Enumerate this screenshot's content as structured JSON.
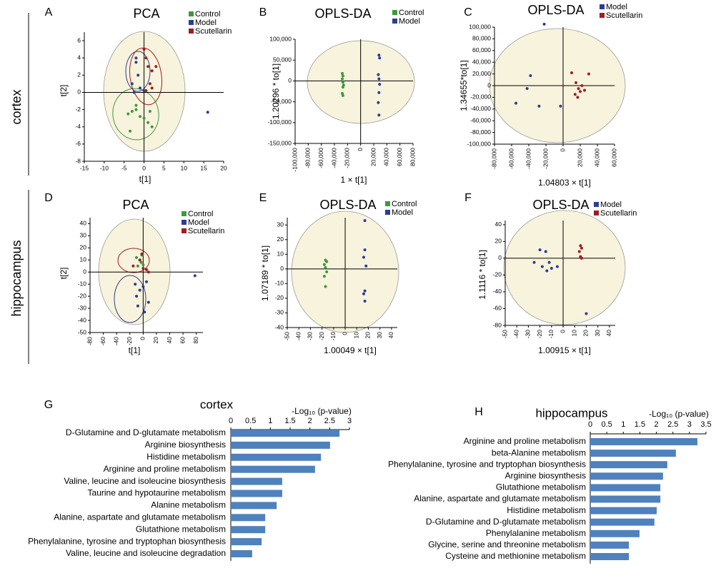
{
  "row_labels": [
    "cortex",
    "hippocampus"
  ],
  "chart_data": [
    {
      "type": "scatter",
      "panel": "A",
      "title": "PCA",
      "x_label": "t[1]",
      "y_label": "t[2]",
      "xlim": [
        -15,
        20
      ],
      "xticks": [
        -15,
        -10,
        -5,
        0,
        5,
        10,
        15,
        20
      ],
      "ylim": [
        -8,
        7
      ],
      "yticks": [
        -8,
        -6,
        -4,
        -2,
        0,
        2,
        4,
        6
      ],
      "series": [
        {
          "name": "Control",
          "color": "#3c9a3c",
          "x": [
            -4,
            -3,
            -2,
            -1,
            0,
            1,
            2,
            -3.5,
            1.5,
            -2
          ],
          "y": [
            -2.5,
            -2.2,
            -2,
            -2.8,
            -3,
            -3.5,
            -4,
            -4.5,
            -2.2,
            -1.5
          ]
        },
        {
          "name": "Model",
          "color": "#2b3d94",
          "x": [
            -2,
            -2,
            -1.5,
            -3,
            -1,
            -2.5,
            0,
            16
          ],
          "y": [
            4,
            3.5,
            2,
            1,
            0.5,
            0,
            0.2,
            -2.3
          ]
        },
        {
          "name": "Scutellarin",
          "color": "#a01c20",
          "x": [
            0,
            0.5,
            1,
            2,
            3,
            1.5,
            0.5,
            2
          ],
          "y": [
            5,
            4,
            3,
            2.5,
            3,
            1,
            0.2,
            0.5
          ]
        }
      ]
    },
    {
      "type": "scatter",
      "panel": "B",
      "title": "OPLS-DA",
      "x_label": "1 × t[1]",
      "y_label": "1.20296 * to[1]",
      "xlim": [
        -100000,
        80000
      ],
      "xticks": [
        {
          "value": -100000,
          "label": "-100,000"
        },
        {
          "value": -80000,
          "label": "-80,000"
        },
        {
          "value": -60000,
          "label": "-60,000"
        },
        {
          "value": -40000,
          "label": "-40,000"
        },
        {
          "value": -20000,
          "label": "-20,000"
        },
        0,
        {
          "value": 20000,
          "label": "20,000"
        },
        {
          "value": 40000,
          "label": "40,000"
        },
        {
          "value": 60000,
          "label": "60,000"
        },
        {
          "value": 80000,
          "label": "80,000"
        }
      ],
      "ylim": [
        -150000,
        100000
      ],
      "yticks": [
        {
          "value": -150000,
          "label": "-150,000"
        },
        {
          "value": -100000,
          "label": "-100,000"
        },
        {
          "value": -50000,
          "label": "-50,000"
        },
        0,
        {
          "value": 50000,
          "label": "50,000"
        },
        {
          "value": 100000,
          "label": "100,000"
        }
      ],
      "series": [
        {
          "name": "Control",
          "color": "#3c9a3c",
          "x": [
            -28000,
            -27000,
            -28000,
            -27000,
            -26000,
            -27000,
            -28000,
            -27000
          ],
          "y": [
            18000,
            12000,
            5000,
            -3000,
            -10000,
            -15000,
            -30000,
            -35000
          ]
        },
        {
          "name": "Model",
          "color": "#2b3d94",
          "x": [
            28000,
            29000,
            27000,
            28000,
            29000,
            28000,
            27000,
            28000
          ],
          "y": [
            62000,
            55000,
            15000,
            5000,
            -8000,
            -28000,
            -52000,
            -82000
          ]
        }
      ]
    },
    {
      "type": "scatter",
      "panel": "C",
      "title": "OPLS-DA",
      "x_label": "1.04803 × t[1]",
      "y_label": "1.34655*to[1]",
      "xlim": [
        -80000,
        60000
      ],
      "xticks": [
        {
          "value": -80000,
          "label": "-80,000"
        },
        {
          "value": -60000,
          "label": "-60,000"
        },
        {
          "value": -40000,
          "label": "-40,000"
        },
        {
          "value": -20000,
          "label": "-20,000"
        },
        0,
        {
          "value": 20000,
          "label": "20,000"
        },
        {
          "value": 40000,
          "label": "40,000"
        },
        {
          "value": 60000,
          "label": "60,000"
        }
      ],
      "ylim": [
        -100000,
        100000
      ],
      "yticks": [
        {
          "value": -100000,
          "label": "-100,000"
        },
        {
          "value": -80000,
          "label": "-80,000"
        },
        {
          "value": -60000,
          "label": "-60,000"
        },
        {
          "value": -40000,
          "label": "-40,000"
        },
        {
          "value": -20000,
          "label": "-20,000"
        },
        0,
        {
          "value": 20000,
          "label": "20,000"
        },
        {
          "value": 40000,
          "label": "40,000"
        },
        {
          "value": 60000,
          "label": "60,000"
        },
        {
          "value": 80000,
          "label": "80,000"
        },
        {
          "value": 100000,
          "label": "100,000"
        }
      ],
      "series": [
        {
          "name": "Model",
          "color": "#2b3d94",
          "x": [
            -22000,
            -55000,
            -42000,
            -38000,
            -28000,
            -3000
          ],
          "y": [
            105000,
            -30000,
            -5000,
            17000,
            -35000,
            -35000
          ]
        },
        {
          "name": "Scutellarin",
          "color": "#a01c20",
          "x": [
            10000,
            30000,
            15000,
            18000,
            20000,
            14000,
            22000,
            25000,
            17000
          ],
          "y": [
            22000,
            20000,
            5000,
            -5000,
            -10000,
            -15000,
            0,
            -8000,
            -20000
          ]
        }
      ]
    },
    {
      "type": "scatter",
      "panel": "D",
      "title": "PCA",
      "x_label": "t[1]",
      "y_label": "t[2]",
      "xlim": [
        -80,
        90
      ],
      "xticks": [
        -80,
        -60,
        -40,
        -20,
        0,
        20,
        40,
        60,
        80
      ],
      "ylim": [
        -50,
        45
      ],
      "yticks": [
        -50,
        -40,
        -30,
        -20,
        -10,
        0,
        10,
        20,
        30,
        40
      ],
      "series": [
        {
          "name": "Control",
          "color": "#3c9a3c",
          "x": [
            -10,
            -5,
            -3,
            0,
            -8,
            -2
          ],
          "y": [
            12,
            10,
            8,
            6,
            5,
            14
          ]
        },
        {
          "name": "Model",
          "color": "#2b3d94",
          "x": [
            -12,
            -5,
            0,
            5,
            -10,
            8,
            -8,
            2,
            78
          ],
          "y": [
            -10,
            -15,
            -12,
            -8,
            -20,
            -25,
            -28,
            -33,
            -3
          ]
        },
        {
          "name": "Scutellarin",
          "color": "#a01c20",
          "x": [
            -15,
            -5,
            0,
            5,
            8,
            -2
          ],
          "y": [
            5,
            10,
            3,
            2,
            0,
            15
          ]
        }
      ]
    },
    {
      "type": "scatter",
      "panel": "E",
      "title": "OPLS-DA",
      "x_label": "1.00049 × t[1]",
      "y_label": "1.07189 * to[1]",
      "xlim": [
        -50,
        45
      ],
      "xticks": [
        -50,
        -40,
        -30,
        -20,
        -10,
        0,
        10,
        20,
        30,
        40
      ],
      "ylim": [
        -40,
        35
      ],
      "yticks": [
        -40,
        -30,
        -20,
        -10,
        0,
        10,
        20,
        30
      ],
      "series": [
        {
          "name": "Control",
          "color": "#3c9a3c",
          "x": [
            -17,
            -16,
            -18,
            -17,
            -16,
            -18,
            -17
          ],
          "y": [
            6,
            5,
            3,
            1,
            -2,
            -5,
            -12
          ]
        },
        {
          "name": "Model",
          "color": "#2b3d94",
          "x": [
            17,
            17,
            16,
            18,
            17,
            16,
            17
          ],
          "y": [
            33,
            13,
            8,
            2,
            -15,
            -17,
            -22
          ]
        }
      ]
    },
    {
      "type": "scatter",
      "panel": "F",
      "title": "OPLS-DA",
      "x_label": "1.00915 × t[1]",
      "y_label": "1.1116 * to[1]",
      "xlim": [
        -50,
        45
      ],
      "xticks": [
        -50,
        -40,
        -30,
        -20,
        -10,
        0,
        10,
        20,
        30,
        40
      ],
      "ylim": [
        -80,
        45
      ],
      "yticks": [
        -80,
        -60,
        -40,
        -20,
        0,
        20,
        40
      ],
      "series": [
        {
          "name": "Model",
          "color": "#2b3d94",
          "x": [
            -20,
            -15,
            -12,
            -18,
            -10,
            -25,
            -14,
            -5,
            20
          ],
          "y": [
            10,
            8,
            -5,
            -10,
            -12,
            -5,
            -15,
            -10,
            -66
          ]
        },
        {
          "name": "Scutellarin",
          "color": "#a01c20",
          "x": [
            15,
            16,
            14,
            15,
            16
          ],
          "y": [
            15,
            12,
            8,
            2,
            0
          ]
        }
      ]
    },
    {
      "type": "bar",
      "orientation": "horizontal",
      "panel": "G",
      "title": "cortex",
      "x_label": "-Log₁₀ (p-value)",
      "color": "#4f81bd",
      "xlim": [
        0,
        3
      ],
      "xticks": [
        0,
        0.5,
        1,
        1.5,
        2,
        2.5,
        3
      ],
      "categories": [
        "D-Glutamine and D-glutamate metabolism",
        "Arginine biosynthesis",
        "Histidine metabolism",
        "Arginine and proline metabolism",
        "Valine, leucine and isoleucine biosynthesis",
        "Taurine and hypotaurine metabolism",
        "Alanine metabolism",
        "Alanine, aspartate and glutamate metabolism",
        "Glutathione metabolism",
        "Phenylalanine, tyrosine and tryptophan biosynthesis",
        "Valine, leucine and isoleucine degradation"
      ],
      "values": [
        2.75,
        2.51,
        2.28,
        2.13,
        1.3,
        1.3,
        1.16,
        0.87,
        0.87,
        0.78,
        0.54
      ]
    },
    {
      "type": "bar",
      "orientation": "horizontal",
      "panel": "H",
      "title": "hippocampus",
      "x_label": "-Log₁₀ (p-value)",
      "color": "#4f81bd",
      "xlim": [
        0,
        3.5
      ],
      "xticks": [
        0,
        0.5,
        1,
        1.5,
        2,
        2.5,
        3,
        3.5
      ],
      "categories": [
        "Arginine and proline metabolism",
        "beta-Alanine metabolism",
        "Phenylalanine, tyrosine and tryptophan biosynthesis",
        "Arginine biosynthesis",
        "Glutathione metabolism",
        "Alanine, aspartate and glutamate metabolism",
        "Histidine metabolism",
        "D-Glutamine and D-glutamate metabolism",
        "Phenylalanine metabolism",
        "Glycine, serine and threonine metabolism",
        "Cysteine and methionine metabolism"
      ],
      "values": [
        3.24,
        2.59,
        2.33,
        2.2,
        2.12,
        2.12,
        2.01,
        1.94,
        1.49,
        1.17,
        1.17
      ]
    }
  ]
}
